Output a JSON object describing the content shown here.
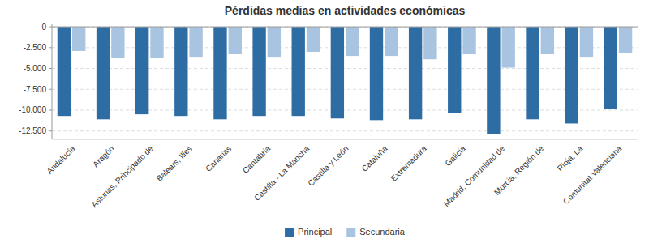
{
  "chart_data": {
    "type": "bar",
    "title": "Pérdidas medias en actividades económicas",
    "categories": [
      "Andalucía",
      "Aragón",
      "Asturias, Principado de",
      "Balears, Illes",
      "Canarias",
      "Cantabria",
      "Castilla - La Mancha",
      "Castilla y León",
      "Cataluña",
      "Extremadura",
      "Galicia",
      "Madrid, Comunidad de",
      "Murcia, Región de",
      "Rioja, La",
      "Comunitat Valenciana"
    ],
    "series": [
      {
        "name": "Principal",
        "color": "#2e6da4",
        "values": [
          -10700,
          -11100,
          -10500,
          -10700,
          -11100,
          -10700,
          -10700,
          -11000,
          -11200,
          -11100,
          -10300,
          -12900,
          -11100,
          -11600,
          -9900
        ]
      },
      {
        "name": "Secundaria",
        "color": "#a8c4e0",
        "values": [
          -2900,
          -3700,
          -3700,
          -3600,
          -3300,
          -3600,
          -3000,
          -3500,
          -3500,
          -3900,
          -3300,
          -4900,
          -3300,
          -3600,
          -3200
        ]
      }
    ],
    "ylim": [
      -13500,
      300
    ],
    "yticks": [
      0,
      {
        "value": -2500,
        "label": "-2.500"
      },
      {
        "value": -5000,
        "label": "-5.000"
      },
      {
        "value": -7500,
        "label": "-7.500"
      },
      {
        "value": -10000,
        "label": "-10.000"
      },
      {
        "value": -12500,
        "label": "-12.500"
      }
    ],
    "grid": true,
    "legend": "bottom"
  }
}
